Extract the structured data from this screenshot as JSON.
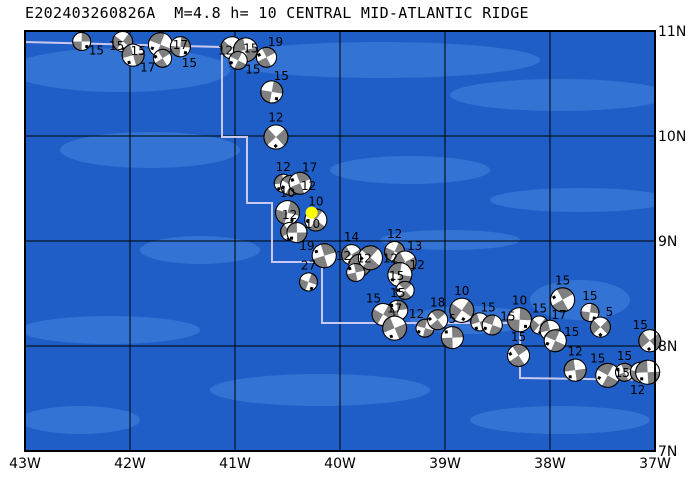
{
  "title": "E202403260826A  M=4.8 h= 10 CENTRAL MID-ATLANTIC RIDGE",
  "map": {
    "lon_range": [
      -43,
      -37
    ],
    "lat_range": [
      7,
      11
    ],
    "x_ticks": [
      "43W",
      "42W",
      "41W",
      "40W",
      "39W",
      "38W",
      "37W"
    ],
    "y_ticks": [
      "7N",
      "8N",
      "9N",
      "10N",
      "11N"
    ],
    "grid": true,
    "colors": {
      "ocean": "#1f5ec6",
      "shallow": "#3a7bd8",
      "ridge": "#c8c8f0",
      "compression": "#808080",
      "dilatation": "#ffffff",
      "target": "#ffff00"
    },
    "target_event": {
      "lon": -40.27,
      "lat": 9.27
    },
    "events": [
      {
        "lon": -42.46,
        "lat": 10.9,
        "depth": "15"
      },
      {
        "lon": -42.07,
        "lat": 10.9,
        "depth": "15"
      },
      {
        "lon": -41.97,
        "lat": 10.77,
        "depth": "15"
      },
      {
        "lon": -41.71,
        "lat": 10.87,
        "depth": "17"
      },
      {
        "lon": -41.69,
        "lat": 10.74,
        "depth": "17"
      },
      {
        "lon": -41.52,
        "lat": 10.85,
        "depth": "15"
      },
      {
        "lon": -41.03,
        "lat": 10.84,
        "depth": "15"
      },
      {
        "lon": -40.9,
        "lat": 10.82,
        "depth": "12"
      },
      {
        "lon": -40.97,
        "lat": 10.72,
        "depth": "15"
      },
      {
        "lon": -40.7,
        "lat": 10.75,
        "depth": "19"
      },
      {
        "lon": -40.65,
        "lat": 10.42,
        "depth": "15"
      },
      {
        "lon": -40.61,
        "lat": 9.99,
        "depth": "12"
      },
      {
        "lon": -40.54,
        "lat": 9.55,
        "depth": "12"
      },
      {
        "lon": -40.47,
        "lat": 9.53,
        "depth": "12"
      },
      {
        "lon": -40.38,
        "lat": 9.55,
        "depth": "17"
      },
      {
        "lon": -40.5,
        "lat": 9.27,
        "depth": "10"
      },
      {
        "lon": -40.48,
        "lat": 9.09,
        "depth": "12"
      },
      {
        "lon": -40.41,
        "lat": 9.08,
        "depth": "10"
      },
      {
        "lon": -40.23,
        "lat": 9.2,
        "depth": "10"
      },
      {
        "lon": -40.15,
        "lat": 8.86,
        "depth": "19"
      },
      {
        "lon": -40.3,
        "lat": 8.61,
        "depth": "27"
      },
      {
        "lon": -39.89,
        "lat": 8.87,
        "depth": "14"
      },
      {
        "lon": -39.81,
        "lat": 8.77,
        "depth": "12"
      },
      {
        "lon": -39.71,
        "lat": 8.84,
        "depth": "12"
      },
      {
        "lon": -39.85,
        "lat": 8.7,
        "depth": "12"
      },
      {
        "lon": -39.48,
        "lat": 8.9,
        "depth": "12"
      },
      {
        "lon": -39.38,
        "lat": 8.8,
        "depth": "13"
      },
      {
        "lon": -39.43,
        "lat": 8.68,
        "depth": "12"
      },
      {
        "lon": -39.38,
        "lat": 8.53,
        "depth": "15"
      },
      {
        "lon": -39.45,
        "lat": 8.34,
        "depth": "15"
      },
      {
        "lon": -39.59,
        "lat": 8.3,
        "depth": "15"
      },
      {
        "lon": -39.48,
        "lat": 8.17,
        "depth": "17"
      },
      {
        "lon": -39.19,
        "lat": 8.17,
        "depth": "12"
      },
      {
        "lon": -39.07,
        "lat": 8.25,
        "depth": "18"
      },
      {
        "lon": -38.93,
        "lat": 8.08,
        "depth": "5"
      },
      {
        "lon": -38.84,
        "lat": 8.34,
        "depth": "10"
      },
      {
        "lon": -38.67,
        "lat": 8.23,
        "depth": "15"
      },
      {
        "lon": -38.55,
        "lat": 8.2,
        "depth": "15"
      },
      {
        "lon": -38.3,
        "lat": 7.91,
        "depth": "15"
      },
      {
        "lon": -38.29,
        "lat": 8.25,
        "depth": "10"
      },
      {
        "lon": -38.1,
        "lat": 8.2,
        "depth": "15"
      },
      {
        "lon": -38.0,
        "lat": 8.15,
        "depth": "17"
      },
      {
        "lon": -37.95,
        "lat": 8.05,
        "depth": "15"
      },
      {
        "lon": -37.88,
        "lat": 8.44,
        "depth": "15"
      },
      {
        "lon": -37.62,
        "lat": 8.32,
        "depth": "15"
      },
      {
        "lon": -37.52,
        "lat": 8.18,
        "depth": "5"
      },
      {
        "lon": -37.76,
        "lat": 7.77,
        "depth": "12"
      },
      {
        "lon": -37.45,
        "lat": 7.72,
        "depth": "15"
      },
      {
        "lon": -37.29,
        "lat": 7.75,
        "depth": "15"
      },
      {
        "lon": -37.14,
        "lat": 7.75,
        "depth": "15"
      },
      {
        "lon": -37.05,
        "lat": 8.05,
        "depth": "15"
      },
      {
        "lon": -37.07,
        "lat": 7.75,
        "depth": "12"
      }
    ]
  }
}
